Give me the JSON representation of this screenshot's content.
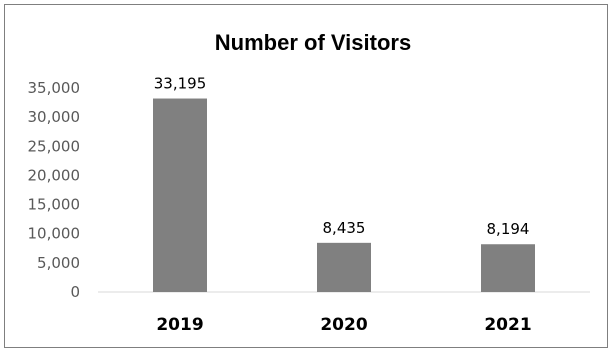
{
  "chart_data": {
    "type": "bar",
    "title": "Number of Visitors",
    "categories": [
      "2019",
      "2020",
      "2021"
    ],
    "values": [
      33195,
      8435,
      8194
    ],
    "value_labels": [
      "33,195",
      "8,435",
      "8,194"
    ],
    "yticks": [
      "0",
      "5,000",
      "10,000",
      "15,000",
      "20,000",
      "25,000",
      "30,000",
      "35,000"
    ],
    "ytick_values": [
      0,
      5000,
      10000,
      15000,
      20000,
      25000,
      30000,
      35000
    ],
    "ylim": [
      0,
      35000
    ],
    "xlabel": "",
    "ylabel": "",
    "grid": false,
    "legend": "none",
    "bar_color": "#808080",
    "axis_color": "#d9d9d9"
  }
}
